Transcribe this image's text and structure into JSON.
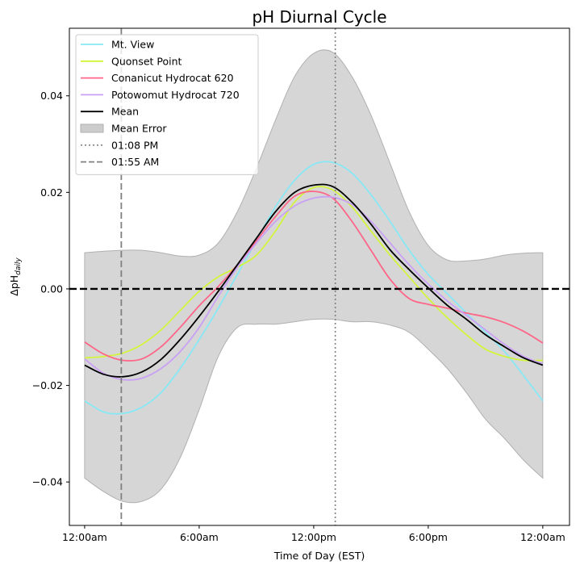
{
  "chart_data": {
    "type": "line",
    "title": "pH Diurnal Cycle",
    "xlabel": "Time of Day (EST)",
    "ylabel_main": "ΔpH",
    "ylabel_sub": "daily",
    "xlim": [
      -0.8,
      25.4
    ],
    "ylim": [
      -0.049,
      0.054
    ],
    "xticks": [
      {
        "value": 0,
        "label": "12:00am"
      },
      {
        "value": 6,
        "label": "6:00am"
      },
      {
        "value": 12,
        "label": "12:00pm"
      },
      {
        "value": 18,
        "label": "6:00pm"
      },
      {
        "value": 24,
        "label": "12:00am"
      }
    ],
    "yticks": [
      {
        "value": -0.04,
        "label": "−0.04"
      },
      {
        "value": -0.02,
        "label": "−0.02"
      },
      {
        "value": 0.0,
        "label": "0.00"
      },
      {
        "value": 0.02,
        "label": "0.02"
      },
      {
        "value": 0.04,
        "label": "0.04"
      }
    ],
    "x": [
      0,
      1,
      2,
      3,
      4,
      5,
      6,
      7,
      8,
      9,
      10,
      11,
      12,
      13,
      14,
      15,
      16,
      17,
      18,
      19,
      20,
      21,
      22,
      23,
      24
    ],
    "series": [
      {
        "name": "Mt. View",
        "color": "#88e8f5",
        "values": [
          -0.0232,
          -0.0255,
          -0.0258,
          -0.0245,
          -0.0215,
          -0.0165,
          -0.0105,
          -0.004,
          0.003,
          0.01,
          0.017,
          0.0225,
          0.0258,
          0.0262,
          0.024,
          0.0195,
          0.014,
          0.008,
          0.003,
          -0.001,
          -0.005,
          -0.009,
          -0.013,
          -0.018,
          -0.0232
        ]
      },
      {
        "name": "Quonset Point",
        "color": "#d2f53c",
        "values": [
          -0.0143,
          -0.014,
          -0.0133,
          -0.0115,
          -0.0085,
          -0.0045,
          -0.0005,
          0.0025,
          0.0045,
          0.007,
          0.012,
          0.018,
          0.021,
          0.0205,
          0.017,
          0.012,
          0.007,
          0.0025,
          -0.002,
          -0.006,
          -0.0095,
          -0.0125,
          -0.014,
          -0.0148,
          -0.0148
        ]
      },
      {
        "name": "Conanicut Hydrocat 620",
        "color": "#ff6688",
        "values": [
          -0.011,
          -0.0135,
          -0.0148,
          -0.0145,
          -0.012,
          -0.008,
          -0.0035,
          0.0005,
          0.005,
          0.01,
          0.015,
          0.0192,
          0.0202,
          0.0188,
          0.014,
          0.008,
          0.002,
          -0.002,
          -0.0032,
          -0.004,
          -0.005,
          -0.0058,
          -0.007,
          -0.0088,
          -0.0112
        ]
      },
      {
        "name": "Potowomut Hydrocat 720",
        "color": "#c9a0f5",
        "values": [
          -0.0145,
          -0.0175,
          -0.0188,
          -0.0185,
          -0.0165,
          -0.013,
          -0.008,
          -0.0015,
          0.0045,
          0.0095,
          0.014,
          0.0172,
          0.0188,
          0.019,
          0.0175,
          0.014,
          0.0095,
          0.005,
          0.001,
          -0.0025,
          -0.0055,
          -0.0085,
          -0.0115,
          -0.014,
          -0.0155
        ]
      },
      {
        "name": "Mean",
        "color": "#000000",
        "values": [
          -0.0158,
          -0.0177,
          -0.0182,
          -0.0172,
          -0.0146,
          -0.0105,
          -0.0057,
          -0.0005,
          0.005,
          0.0105,
          0.016,
          0.02,
          0.0215,
          0.0212,
          0.018,
          0.0134,
          0.0081,
          0.004,
          0.0002,
          -0.0034,
          -0.0063,
          -0.0095,
          -0.012,
          -0.0143,
          -0.0158
        ]
      }
    ],
    "mean_error": {
      "name": "Mean Error",
      "color": "#cccccc",
      "upper": [
        0.0075,
        0.0078,
        0.008,
        0.008,
        0.0075,
        0.0068,
        0.007,
        0.0095,
        0.016,
        0.025,
        0.035,
        0.044,
        0.0488,
        0.049,
        0.044,
        0.036,
        0.026,
        0.016,
        0.009,
        0.006,
        0.0058,
        0.0062,
        0.007,
        0.0074,
        0.0075
      ],
      "lower": [
        -0.0392,
        -0.042,
        -0.044,
        -0.044,
        -0.0415,
        -0.035,
        -0.025,
        -0.014,
        -0.008,
        -0.0073,
        -0.0073,
        -0.0068,
        -0.0063,
        -0.0063,
        -0.0068,
        -0.0068,
        -0.0075,
        -0.009,
        -0.0125,
        -0.0165,
        -0.0215,
        -0.027,
        -0.031,
        -0.0355,
        -0.0392
      ]
    },
    "reference_lines": [
      {
        "name": "01:08 PM",
        "orientation": "vertical",
        "x": 13.13,
        "style": "dotted",
        "color": "#808080"
      },
      {
        "name": "01:55 AM",
        "orientation": "vertical",
        "x": 1.92,
        "style": "dashed",
        "color": "#808080"
      },
      {
        "orientation": "horizontal",
        "y": 0.0,
        "style": "dashed",
        "color": "#000000"
      }
    ],
    "legend": {
      "placement": "top-left",
      "entries": [
        {
          "label": "Mt. View",
          "kind": "line",
          "color": "#88e8f5"
        },
        {
          "label": "Quonset Point",
          "kind": "line",
          "color": "#d2f53c"
        },
        {
          "label": "Conanicut Hydrocat 620",
          "kind": "line",
          "color": "#ff6688"
        },
        {
          "label": "Potowomut Hydrocat 720",
          "kind": "line",
          "color": "#c9a0f5"
        },
        {
          "label": "Mean",
          "kind": "line",
          "color": "#000000"
        },
        {
          "label": "Mean Error",
          "kind": "patch",
          "color": "#cccccc"
        },
        {
          "label": "01:08 PM",
          "kind": "dotted",
          "color": "#808080"
        },
        {
          "label": "01:55 AM",
          "kind": "dashed",
          "color": "#808080"
        }
      ]
    },
    "grid": false
  }
}
